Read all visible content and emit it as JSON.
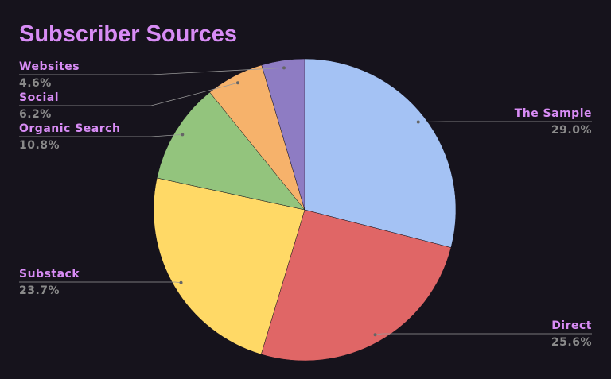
{
  "chart_data": {
    "type": "pie",
    "title": "Subscriber Sources",
    "categories": [
      "The Sample",
      "Direct",
      "Substack",
      "Organic Search",
      "Social",
      "Websites"
    ],
    "values": [
      29.0,
      25.6,
      23.7,
      10.8,
      6.2,
      4.6
    ],
    "value_labels": [
      "29.0%",
      "25.6%",
      "23.7%",
      "10.8%",
      "6.2%",
      "4.6%"
    ],
    "colors": [
      "#a4c2f4",
      "#e06666",
      "#ffd966",
      "#93c47d",
      "#f6b26b",
      "#8e7cc3"
    ]
  }
}
